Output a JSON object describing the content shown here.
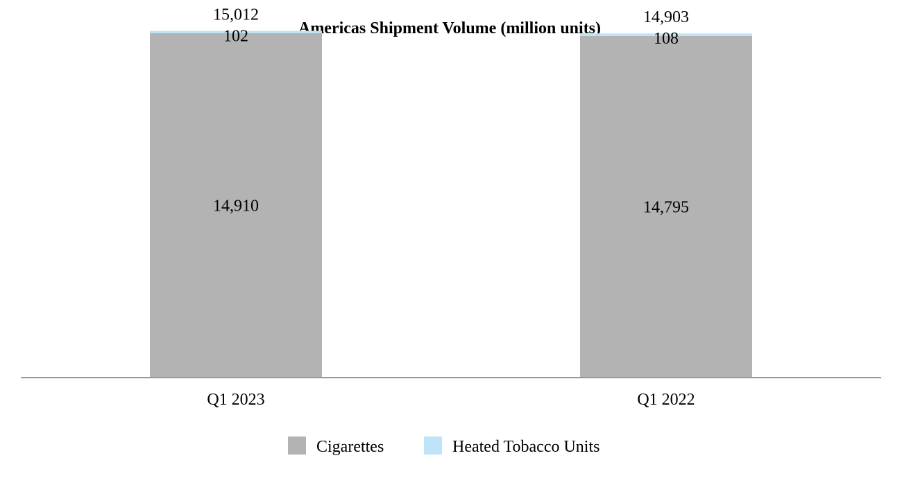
{
  "chart_data": {
    "type": "bar",
    "stacked": true,
    "title": "Americas Shipment Volume (million units)",
    "xlabel": "",
    "ylabel": "",
    "categories": [
      "Q1 2023",
      "Q1 2022"
    ],
    "series": [
      {
        "name": "Cigarettes",
        "values": [
          14910,
          14795
        ],
        "color": "#b3b3b3"
      },
      {
        "name": "Heated Tobacco Units",
        "values": [
          102,
          108
        ],
        "color": "#bfe3f7"
      }
    ],
    "totals": [
      "15,012",
      "14,903"
    ],
    "value_labels": [
      [
        "14,910",
        "14,795"
      ],
      [
        "102",
        "108"
      ]
    ],
    "ylim": [
      0,
      15750
    ],
    "grid": false,
    "legend": "bottom-center"
  }
}
